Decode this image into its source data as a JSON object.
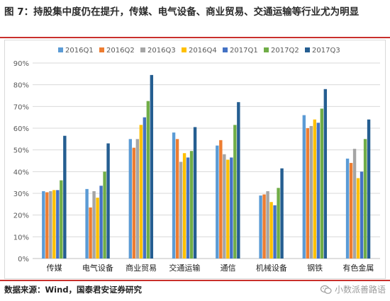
{
  "title": "图 7：持股集中度仍在提升，传媒、电气设备、商业贸易、交通运输等行业尤为明显",
  "source": "数据来源：Wind，国泰君安证券研究",
  "watermark": {
    "text": "小数派善路语",
    "icon": "wechat-logo"
  },
  "colors": {
    "title_rule": "#c9302c",
    "series": [
      "#5b9bd5",
      "#ed7d31",
      "#a5a5a5",
      "#ffc000",
      "#4472c4",
      "#70ad47",
      "#255e91"
    ]
  },
  "chart_data": {
    "type": "bar",
    "categories": [
      "传媒",
      "电气设备",
      "商业贸易",
      "交通运输",
      "通信",
      "机械设备",
      "钢铁",
      "有色金属"
    ],
    "ylim": [
      0,
      90
    ],
    "yticks": [
      0,
      10,
      20,
      30,
      40,
      50,
      60,
      70,
      80,
      90
    ],
    "ytick_labels": [
      "0%",
      "10%",
      "20%",
      "30%",
      "40%",
      "50%",
      "60%",
      "70%",
      "80%",
      "90%"
    ],
    "grid": true,
    "legend": "top",
    "series": [
      {
        "name": "2016Q1",
        "values": [
          31,
          32,
          55,
          58,
          52,
          29,
          66,
          46
        ]
      },
      {
        "name": "2016Q2",
        "values": [
          30.5,
          23.5,
          51,
          55,
          54.5,
          29.5,
          60,
          44
        ]
      },
      {
        "name": "2016Q3",
        "values": [
          31,
          31,
          55,
          44.5,
          48,
          31,
          61,
          50.5
        ]
      },
      {
        "name": "2016Q4",
        "values": [
          31.5,
          28,
          61.5,
          48.5,
          45.5,
          26,
          64,
          37
        ]
      },
      {
        "name": "2017Q1",
        "values": [
          31.5,
          33.5,
          65,
          46.5,
          46.5,
          24.5,
          62.5,
          40
        ]
      },
      {
        "name": "2017Q2",
        "values": [
          36,
          40,
          72.5,
          49.5,
          61.5,
          32.5,
          69,
          55
        ]
      },
      {
        "name": "2017Q3",
        "values": [
          56.5,
          53,
          84.5,
          60.5,
          72,
          41.5,
          78,
          64
        ]
      }
    ]
  }
}
